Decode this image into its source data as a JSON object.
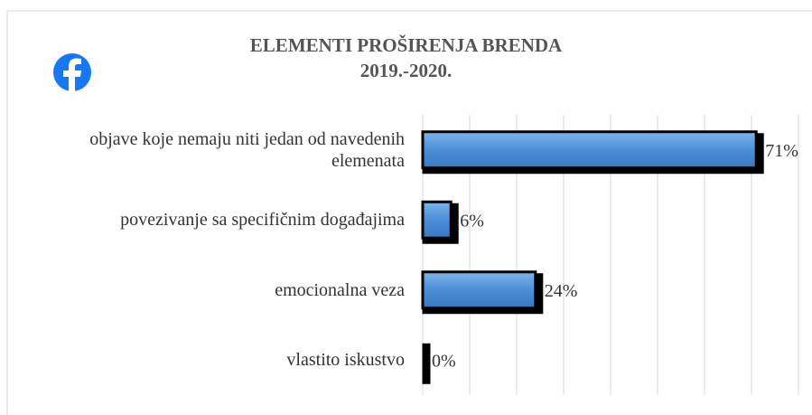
{
  "chart_data": {
    "type": "bar",
    "orientation": "horizontal",
    "title": "ELEMENTI PROŠIRENJA BRENDA",
    "subtitle": "2019.-2020.",
    "categories": [
      "objave koje nemaju niti jedan od navedenih elemenata",
      "povezivanje sa specifičnim događajima",
      "emocionalna veza",
      "vlastito iskustvo"
    ],
    "values": [
      71,
      6,
      24,
      0
    ],
    "value_labels": [
      "71%",
      "6%",
      "24%",
      "0%"
    ],
    "color": "#4a8fd8",
    "xlim": [
      0,
      80
    ],
    "xticks": [
      0,
      10,
      20,
      30,
      40,
      50,
      60,
      70,
      80
    ],
    "grid": true
  }
}
